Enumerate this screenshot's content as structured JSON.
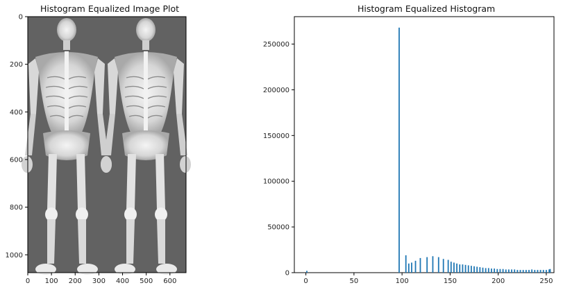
{
  "left_panel": {
    "title": "Histogram Equalized Image Plot",
    "xticks": [
      "0",
      "100",
      "200",
      "300",
      "400",
      "500",
      "600"
    ],
    "yticks": [
      "0",
      "200",
      "400",
      "600",
      "800",
      "1000"
    ],
    "background_color": "#626262",
    "content_description": "two full-body bone-scan figures"
  },
  "chart_data": {
    "type": "bar",
    "title": "Histogram Equalized Histogram",
    "xlabel": "",
    "ylabel": "",
    "xlim": [
      -12,
      258
    ],
    "ylim": [
      0,
      280000
    ],
    "xticks": [
      0,
      50,
      100,
      150,
      200,
      250
    ],
    "yticks": [
      0,
      50000,
      100000,
      150000,
      200000,
      250000
    ],
    "bar_color": "#1f77b4",
    "grid": false,
    "x": [
      1,
      97,
      104,
      107,
      110,
      114,
      119,
      126,
      132,
      138,
      143,
      148,
      151,
      154,
      157,
      160,
      163,
      166,
      169,
      172,
      175,
      178,
      181,
      184,
      187,
      190,
      193,
      196,
      199,
      202,
      205,
      208,
      211,
      214,
      217,
      220,
      223,
      226,
      229,
      232,
      235,
      238,
      241,
      244,
      247,
      250,
      253,
      254
    ],
    "values": [
      2000,
      268000,
      19000,
      10000,
      11000,
      13000,
      16000,
      17000,
      18000,
      17000,
      15000,
      14000,
      12000,
      11000,
      10000,
      9000,
      9000,
      8500,
      8000,
      7500,
      7000,
      6500,
      6000,
      5500,
      5000,
      5000,
      4500,
      4500,
      4000,
      4000,
      4000,
      3500,
      3500,
      3500,
      3500,
      3000,
      3000,
      3000,
      3000,
      3000,
      3500,
      3000,
      3000,
      3000,
      3000,
      3000,
      3500,
      4000
    ]
  }
}
